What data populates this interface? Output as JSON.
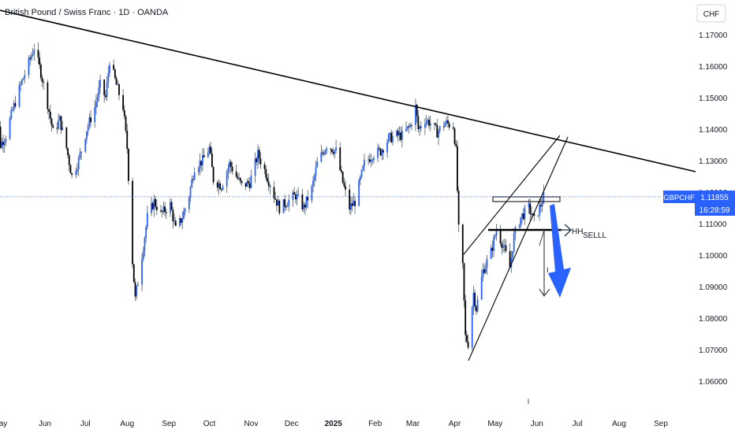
{
  "header": {
    "symbol_title": "British Pound / Swiss Franc · 1D · OANDA",
    "currency_button": "CHF"
  },
  "price_label": {
    "symbol": "GBPCHF",
    "price": "1.11855",
    "countdown": "16:28:59",
    "bg_color": "#2962ff"
  },
  "annotations": {
    "hh_label": "HH",
    "sell_label": "SELLL",
    "small_mark_1": "I",
    "small_mark_2": "l"
  },
  "colors": {
    "up_candle": "#2962ff",
    "down_candle": "#000000",
    "wick": "#1a2d4a",
    "trend_lines": "#000000",
    "arrow": "#2962ff",
    "price_line": "#2962ff"
  },
  "chart_data": {
    "type": "candlestick",
    "title": "British Pound / Swiss Franc · 1D · OANDA",
    "ylim": [
      1.055,
      1.175
    ],
    "y_ticks": [
      "1.17000",
      "1.16000",
      "1.15000",
      "1.14000",
      "1.13000",
      "1.12000",
      "1.11000",
      "1.10000",
      "1.09000",
      "1.08000",
      "1.07000",
      "1.06000"
    ],
    "x_ticks": [
      {
        "label": "ay",
        "date": "2024-05-01"
      },
      {
        "label": "Jun",
        "date": "2024-06-01"
      },
      {
        "label": "Jul",
        "date": "2024-07-01"
      },
      {
        "label": "Aug",
        "date": "2024-08-01"
      },
      {
        "label": "Sep",
        "date": "2024-09-01"
      },
      {
        "label": "Oct",
        "date": "2024-10-01"
      },
      {
        "label": "Nov",
        "date": "2024-11-01"
      },
      {
        "label": "Dec",
        "date": "2024-12-01"
      },
      {
        "label": "2025",
        "date": "2025-01-01",
        "bold": true
      },
      {
        "label": "Feb",
        "date": "2025-02-01"
      },
      {
        "label": "Mar",
        "date": "2025-03-01"
      },
      {
        "label": "Apr",
        "date": "2025-04-01"
      },
      {
        "label": "May",
        "date": "2025-05-01"
      },
      {
        "label": "Jun",
        "date": "2025-06-01"
      },
      {
        "label": "Jul",
        "date": "2025-07-01"
      },
      {
        "label": "Aug",
        "date": "2025-08-01"
      },
      {
        "label": "Sep",
        "date": "2025-09-01"
      }
    ],
    "last_price": 1.11855,
    "price_path": [
      [
        "2024-04-22",
        1.148
      ],
      [
        "2024-04-25",
        1.142
      ],
      [
        "2024-04-29",
        1.135
      ],
      [
        "2024-05-03",
        1.138
      ],
      [
        "2024-05-08",
        1.146
      ],
      [
        "2024-05-14",
        1.154
      ],
      [
        "2024-05-20",
        1.161
      ],
      [
        "2024-05-24",
        1.166
      ],
      [
        "2024-05-29",
        1.158
      ],
      [
        "2024-06-03",
        1.148
      ],
      [
        "2024-06-07",
        1.139
      ],
      [
        "2024-06-12",
        1.143
      ],
      [
        "2024-06-17",
        1.134
      ],
      [
        "2024-06-21",
        1.125
      ],
      [
        "2024-06-26",
        1.13
      ],
      [
        "2024-07-02",
        1.14
      ],
      [
        "2024-07-08",
        1.147
      ],
      [
        "2024-07-12",
        1.154
      ],
      [
        "2024-07-16",
        1.15
      ],
      [
        "2024-07-19",
        1.162
      ],
      [
        "2024-07-24",
        1.154
      ],
      [
        "2024-07-29",
        1.147
      ],
      [
        "2024-08-01",
        1.134
      ],
      [
        "2024-08-05",
        1.098
      ],
      [
        "2024-08-07",
        1.086
      ],
      [
        "2024-08-12",
        1.1
      ],
      [
        "2024-08-16",
        1.112
      ],
      [
        "2024-08-21",
        1.117
      ],
      [
        "2024-08-26",
        1.113
      ],
      [
        "2024-09-02",
        1.116
      ],
      [
        "2024-09-06",
        1.108
      ],
      [
        "2024-09-11",
        1.112
      ],
      [
        "2024-09-16",
        1.119
      ],
      [
        "2024-09-20",
        1.128
      ],
      [
        "2024-09-26",
        1.13
      ],
      [
        "2024-10-01",
        1.134
      ],
      [
        "2024-10-04",
        1.124
      ],
      [
        "2024-10-10",
        1.122
      ],
      [
        "2024-10-16",
        1.129
      ],
      [
        "2024-10-21",
        1.125
      ],
      [
        "2024-10-25",
        1.122
      ],
      [
        "2024-10-31",
        1.123
      ],
      [
        "2024-11-06",
        1.132
      ],
      [
        "2024-11-12",
        1.126
      ],
      [
        "2024-11-18",
        1.119
      ],
      [
        "2024-11-22",
        1.115
      ],
      [
        "2024-11-28",
        1.117
      ],
      [
        "2024-12-04",
        1.119
      ],
      [
        "2024-12-10",
        1.115
      ],
      [
        "2024-12-16",
        1.121
      ],
      [
        "2024-12-20",
        1.129
      ],
      [
        "2024-12-27",
        1.135
      ],
      [
        "2025-01-03",
        1.133
      ],
      [
        "2025-01-08",
        1.123
      ],
      [
        "2025-01-13",
        1.115
      ],
      [
        "2025-01-17",
        1.117
      ],
      [
        "2025-01-24",
        1.129
      ],
      [
        "2025-01-30",
        1.132
      ],
      [
        "2025-02-05",
        1.133
      ],
      [
        "2025-02-11",
        1.137
      ],
      [
        "2025-02-17",
        1.138
      ],
      [
        "2025-02-21",
        1.138
      ],
      [
        "2025-02-27",
        1.141
      ],
      [
        "2025-03-03",
        1.147
      ],
      [
        "2025-03-05",
        1.14
      ],
      [
        "2025-03-10",
        1.143
      ],
      [
        "2025-03-14",
        1.142
      ],
      [
        "2025-03-19",
        1.139
      ],
      [
        "2025-03-25",
        1.142
      ],
      [
        "2025-03-31",
        1.141
      ],
      [
        "2025-04-02",
        1.133
      ],
      [
        "2025-04-04",
        1.108
      ],
      [
        "2025-04-07",
        1.096
      ],
      [
        "2025-04-09",
        1.074
      ],
      [
        "2025-04-11",
        1.072
      ],
      [
        "2025-04-15",
        1.088
      ],
      [
        "2025-04-17",
        1.083
      ],
      [
        "2025-04-22",
        1.095
      ],
      [
        "2025-04-28",
        1.101
      ],
      [
        "2025-05-02",
        1.108
      ],
      [
        "2025-05-07",
        1.103
      ],
      [
        "2025-05-12",
        1.096
      ],
      [
        "2025-05-15",
        1.106
      ],
      [
        "2025-05-20",
        1.112
      ],
      [
        "2025-05-26",
        1.115
      ],
      [
        "2025-05-30",
        1.111
      ],
      [
        "2025-06-04",
        1.116
      ],
      [
        "2025-06-06",
        1.11855
      ]
    ]
  }
}
